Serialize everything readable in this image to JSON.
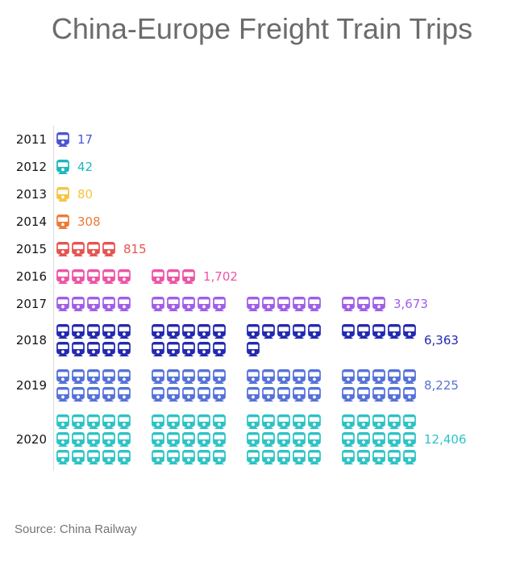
{
  "page": {
    "title": "China-Europe Freight Train Trips",
    "source": "Source: China Railway"
  },
  "chart_data": {
    "type": "pictogram",
    "title": "China-Europe Freight Train Trips",
    "source_note": "Source: China Railway",
    "icon": "train-icon",
    "icons_per_group": 5,
    "icons_per_line": 20,
    "legend_position": "none",
    "grid": false,
    "categories": [
      "2011",
      "2012",
      "2013",
      "2014",
      "2015",
      "2016",
      "2017",
      "2018",
      "2019",
      "2020"
    ],
    "values": [
      17,
      42,
      80,
      308,
      815,
      1702,
      3673,
      6363,
      8225,
      12406
    ],
    "rows": [
      {
        "year": "2011",
        "value": 17,
        "label": "17",
        "icons": 1,
        "color": "#4b55d2"
      },
      {
        "year": "2012",
        "value": 42,
        "label": "42",
        "icons": 1,
        "color": "#1cb8bd"
      },
      {
        "year": "2013",
        "value": 80,
        "label": "80",
        "icons": 1,
        "color": "#f7c440"
      },
      {
        "year": "2014",
        "value": 308,
        "label": "308",
        "icons": 1,
        "color": "#ee7b35"
      },
      {
        "year": "2015",
        "value": 815,
        "label": "815",
        "icons": 4,
        "color": "#e65450"
      },
      {
        "year": "2016",
        "value": 1702,
        "label": "1,702",
        "icons": 8,
        "color": "#ee53a6"
      },
      {
        "year": "2017",
        "value": 3673,
        "label": "3,673",
        "icons": 18,
        "color": "#a05ee8"
      },
      {
        "year": "2018",
        "value": 6363,
        "label": "6,363",
        "icons": 31,
        "color": "#2329b0"
      },
      {
        "year": "2019",
        "value": 8225,
        "label": "8,225",
        "icons": 40,
        "color": "#5571d9"
      },
      {
        "year": "2020",
        "value": 12406,
        "label": "12,406",
        "icons": 60,
        "color": "#2cc3c5"
      }
    ]
  }
}
